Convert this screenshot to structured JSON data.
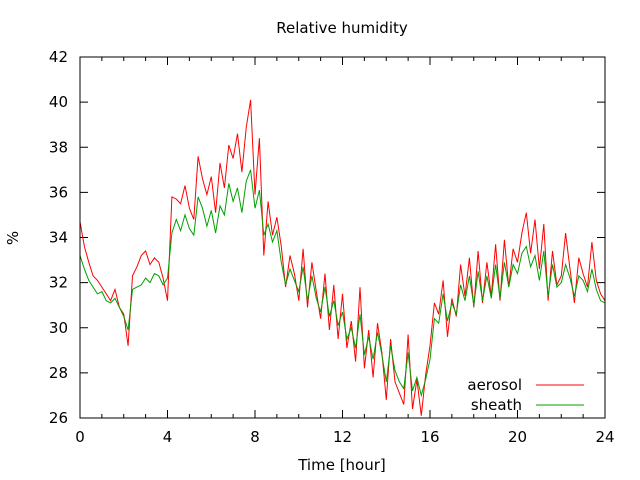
{
  "chart_data": {
    "type": "line",
    "title": "Relative humidity",
    "xlabel": "Time [hour]",
    "ylabel": "%",
    "xlim": [
      0,
      24
    ],
    "ylim": [
      26,
      42
    ],
    "xticks": [
      0,
      4,
      8,
      12,
      16,
      20,
      24
    ],
    "yticks": [
      26,
      28,
      30,
      32,
      34,
      36,
      38,
      40,
      42
    ],
    "grid": false,
    "legend": "bottom-right",
    "series": [
      {
        "name": "aerosol",
        "color": "#ff0000",
        "x": [
          0,
          0.2,
          0.4,
          0.6,
          0.8,
          1,
          1.2,
          1.4,
          1.6,
          1.8,
          2,
          2.2,
          2.4,
          2.6,
          2.8,
          3,
          3.2,
          3.4,
          3.6,
          3.8,
          4,
          4.2,
          4.4,
          4.6,
          4.8,
          5,
          5.2,
          5.4,
          5.6,
          5.8,
          6,
          6.2,
          6.4,
          6.6,
          6.8,
          7,
          7.2,
          7.4,
          7.6,
          7.8,
          8,
          8.2,
          8.4,
          8.6,
          8.8,
          9,
          9.2,
          9.4,
          9.6,
          9.8,
          10,
          10.2,
          10.4,
          10.6,
          10.8,
          11,
          11.2,
          11.4,
          11.6,
          11.8,
          12,
          12.2,
          12.4,
          12.6,
          12.8,
          13,
          13.2,
          13.4,
          13.6,
          13.8,
          14,
          14.2,
          14.4,
          14.6,
          14.8,
          15,
          15.2,
          15.4,
          15.6,
          15.8,
          16,
          16.2,
          16.4,
          16.6,
          16.8,
          17,
          17.2,
          17.4,
          17.6,
          17.8,
          18,
          18.2,
          18.4,
          18.6,
          18.8,
          19,
          19.2,
          19.4,
          19.6,
          19.8,
          20,
          20.2,
          20.4,
          20.6,
          20.8,
          21,
          21.2,
          21.4,
          21.6,
          21.8,
          22,
          22.2,
          22.4,
          22.6,
          22.8,
          23,
          23.2,
          23.4,
          23.6,
          23.8,
          24
        ],
        "y": [
          34.7,
          33.6,
          32.9,
          32.3,
          32.1,
          31.8,
          31.5,
          31.2,
          31.7,
          30.9,
          30.6,
          29.2,
          32.3,
          32.7,
          33.2,
          33.4,
          32.8,
          33.1,
          32.9,
          32.2,
          31.2,
          35.8,
          35.7,
          35.5,
          36.3,
          35.3,
          34.8,
          37.6,
          36.6,
          35.9,
          36.7,
          35.1,
          37.3,
          36.2,
          38.1,
          37.5,
          38.6,
          36.9,
          38.9,
          40.1,
          35.9,
          38.4,
          33.2,
          35.6,
          34.1,
          34.9,
          33.6,
          31.8,
          33.2,
          32.4,
          31.2,
          33.5,
          30.9,
          32.9,
          31.6,
          30.4,
          32.4,
          29.9,
          31.9,
          29.5,
          31.5,
          29.1,
          30.3,
          28.5,
          31.8,
          28.2,
          29.9,
          27.8,
          30.2,
          28.9,
          26.8,
          29.5,
          27.6,
          27.1,
          26.6,
          29.7,
          26.4,
          27.7,
          26.1,
          27.9,
          29.2,
          31.1,
          30.6,
          32.1,
          29.6,
          31.3,
          30.5,
          32.8,
          31.4,
          33.1,
          30.9,
          33.4,
          31.1,
          32.9,
          31.4,
          33.7,
          31.2,
          33.9,
          31.8,
          33.5,
          32.9,
          34.2,
          35.1,
          33.3,
          34.8,
          32.6,
          34.6,
          31.2,
          33.4,
          31.9,
          32.3,
          34.2,
          32.6,
          31.1,
          33.1,
          32.4,
          31.8,
          33.8,
          32.1,
          31.5,
          31.2
        ]
      },
      {
        "name": "sheath",
        "color": "#00a000",
        "x": [
          0,
          0.2,
          0.4,
          0.6,
          0.8,
          1,
          1.2,
          1.4,
          1.6,
          1.8,
          2,
          2.2,
          2.4,
          2.6,
          2.8,
          3,
          3.2,
          3.4,
          3.6,
          3.8,
          4,
          4.2,
          4.4,
          4.6,
          4.8,
          5,
          5.2,
          5.4,
          5.6,
          5.8,
          6,
          6.2,
          6.4,
          6.6,
          6.8,
          7,
          7.2,
          7.4,
          7.6,
          7.8,
          8,
          8.2,
          8.4,
          8.6,
          8.8,
          9,
          9.2,
          9.4,
          9.6,
          9.8,
          10,
          10.2,
          10.4,
          10.6,
          10.8,
          11,
          11.2,
          11.4,
          11.6,
          11.8,
          12,
          12.2,
          12.4,
          12.6,
          12.8,
          13,
          13.2,
          13.4,
          13.6,
          13.8,
          14,
          14.2,
          14.4,
          14.6,
          14.8,
          15,
          15.2,
          15.4,
          15.6,
          15.8,
          16,
          16.2,
          16.4,
          16.6,
          16.8,
          17,
          17.2,
          17.4,
          17.6,
          17.8,
          18,
          18.2,
          18.4,
          18.6,
          18.8,
          19,
          19.2,
          19.4,
          19.6,
          19.8,
          20,
          20.2,
          20.4,
          20.6,
          20.8,
          21,
          21.2,
          21.4,
          21.6,
          21.8,
          22,
          22.2,
          22.4,
          22.6,
          22.8,
          23,
          23.2,
          23.4,
          23.6,
          23.8,
          24
        ],
        "y": [
          33.2,
          32.6,
          32.1,
          31.8,
          31.5,
          31.6,
          31.2,
          31.1,
          31.3,
          30.9,
          30.5,
          29.9,
          31.7,
          31.8,
          31.9,
          32.2,
          32.0,
          32.4,
          32.3,
          31.9,
          32.2,
          34.2,
          34.8,
          34.3,
          35.0,
          34.4,
          34.1,
          35.8,
          35.3,
          34.5,
          35.2,
          34.2,
          35.4,
          35.0,
          36.4,
          35.6,
          36.2,
          35.1,
          36.5,
          37.0,
          35.3,
          36.1,
          34.1,
          34.6,
          33.8,
          34.3,
          32.9,
          31.9,
          32.6,
          32.1,
          31.6,
          32.7,
          31.2,
          32.3,
          31.3,
          30.7,
          31.8,
          30.5,
          31.2,
          30.1,
          30.7,
          29.5,
          30.0,
          29.1,
          30.6,
          28.8,
          29.6,
          28.6,
          29.8,
          28.8,
          27.6,
          29.2,
          28.1,
          27.6,
          27.3,
          28.9,
          27.2,
          27.8,
          27.0,
          27.7,
          28.6,
          30.4,
          30.2,
          31.5,
          30.3,
          31.1,
          30.6,
          31.9,
          31.2,
          32.3,
          31.0,
          32.5,
          31.2,
          32.3,
          31.3,
          32.8,
          31.3,
          32.9,
          31.8,
          32.8,
          32.4,
          33.3,
          33.6,
          32.7,
          33.2,
          32.1,
          33.4,
          31.4,
          32.8,
          31.8,
          32.0,
          32.8,
          32.2,
          31.4,
          32.3,
          32.1,
          31.6,
          32.6,
          31.7,
          31.2,
          31.1
        ]
      }
    ]
  }
}
